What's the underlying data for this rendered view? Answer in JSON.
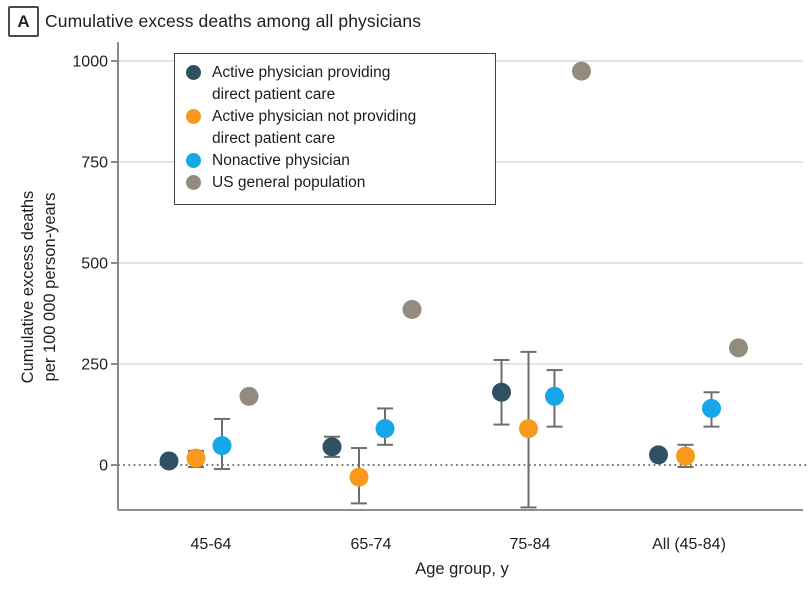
{
  "panel": {
    "label": "A"
  },
  "header": {
    "title": "Cumulative excess deaths among all physicians"
  },
  "chart_data": {
    "type": "scatter",
    "title": "Cumulative excess deaths among all physicians",
    "xlabel": "Age group, y",
    "ylabel": [
      "Cumulative excess deaths",
      "per 100 000 person-years"
    ],
    "categories": [
      "45-64",
      "65-74",
      "75-84",
      "All (45-84)"
    ],
    "yticks": [
      0,
      250,
      500,
      750,
      1000
    ],
    "ylim": [
      -120,
      1040
    ],
    "grid": "light horizontal gridlines at 250/500/750/1000, dotted line at 0",
    "legend_position": "top-left inside plot area",
    "colors": {
      "axis": "#7e7e7e",
      "gridline": "#dcdcdc",
      "zero_line": "#4d4d4d",
      "error_bar": "#6e6e6e",
      "text": "#1f1f1f"
    },
    "series": [
      {
        "name": "Active physician providing direct patient care",
        "legend_lines": [
          "Active physician providing",
          "direct patient care"
        ],
        "color": "#2e5262",
        "points": [
          {
            "category": "45-64",
            "value": 10,
            "lo": null,
            "hi": null
          },
          {
            "category": "65-74",
            "value": 45,
            "lo": 20,
            "hi": 70
          },
          {
            "category": "75-84",
            "value": 180,
            "lo": 100,
            "hi": 260
          },
          {
            "category": "All (45-84)",
            "value": 25,
            "lo": null,
            "hi": null
          }
        ]
      },
      {
        "name": "Active physician not providing direct patient care",
        "legend_lines": [
          "Active physician not providing",
          "direct patient care"
        ],
        "color": "#f8991d",
        "points": [
          {
            "category": "45-64",
            "value": 17,
            "lo": -5,
            "hi": 35
          },
          {
            "category": "65-74",
            "value": -30,
            "lo": -95,
            "hi": 42
          },
          {
            "category": "75-84",
            "value": 90,
            "lo": -105,
            "hi": 280
          },
          {
            "category": "All (45-84)",
            "value": 22,
            "lo": -5,
            "hi": 50
          }
        ]
      },
      {
        "name": "Nonactive physician",
        "legend_lines": [
          "Nonactive physician"
        ],
        "color": "#14a7e9",
        "points": [
          {
            "category": "45-64",
            "value": 48,
            "lo": -10,
            "hi": 114
          },
          {
            "category": "65-74",
            "value": 90,
            "lo": 50,
            "hi": 140
          },
          {
            "category": "75-84",
            "value": 170,
            "lo": 95,
            "hi": 235
          },
          {
            "category": "All (45-84)",
            "value": 140,
            "lo": 95,
            "hi": 180
          }
        ]
      },
      {
        "name": "US general population",
        "legend_lines": [
          "US general population"
        ],
        "color": "#938b7d",
        "points": [
          {
            "category": "45-64",
            "value": 170,
            "lo": null,
            "hi": null
          },
          {
            "category": "65-74",
            "value": 385,
            "lo": null,
            "hi": null
          },
          {
            "category": "75-84",
            "value": 975,
            "lo": null,
            "hi": null
          },
          {
            "category": "All (45-84)",
            "value": 290,
            "lo": null,
            "hi": null
          }
        ]
      }
    ]
  }
}
